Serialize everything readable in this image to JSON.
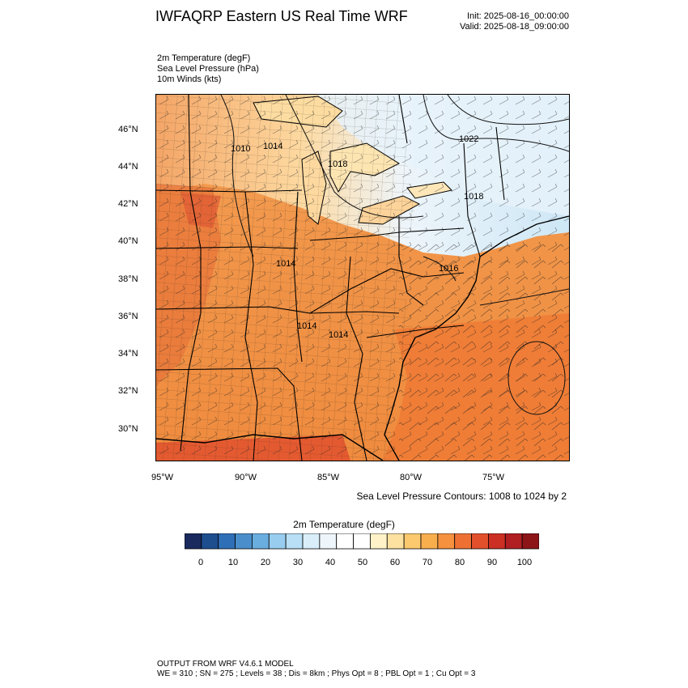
{
  "header": {
    "title": "IWFAQRP Eastern US Real Time WRF",
    "init": "Init: 2025-08-16_00:00:00",
    "valid": "Valid: 2025-08-18_09:00:00"
  },
  "fields": [
    "2m Temperature   (degF)",
    "Sea Level Pressure   (hPa)",
    "10m Winds   (kts)"
  ],
  "map": {
    "lat_labels": [
      "46°N",
      "44°N",
      "42°N",
      "40°N",
      "38°N",
      "36°N",
      "34°N",
      "32°N",
      "30°N"
    ],
    "lon_labels": [
      "95°W",
      "90°W",
      "85°W",
      "80°W",
      "75°W"
    ],
    "pressure_labels": [
      "1010",
      "1014",
      "1018",
      "1022",
      "1018",
      "1014",
      "1016",
      "1014",
      "1014"
    ],
    "slp_note": "Sea Level Pressure Contours: 1008 to 1024 by 2",
    "colors": {
      "hot": "#e34a33",
      "warm": "#f4a261",
      "mild": "#fde0a8",
      "cool": "#e8f3fa",
      "cold": "#cbe6f5"
    }
  },
  "colorbar": {
    "title": "2m Temperature  (degF)",
    "ticks": [
      "0",
      "10",
      "20",
      "30",
      "40",
      "50",
      "60",
      "70",
      "80",
      "90",
      "100"
    ],
    "colors": [
      "#1a2a5e",
      "#1f4e8f",
      "#2f6fb7",
      "#4a8fcc",
      "#6aaee0",
      "#98cdf0",
      "#b8dff5",
      "#d9eef9",
      "#eef6fb",
      "#ffffff",
      "#ffffff",
      "#fff2c8",
      "#fde1a0",
      "#fcc96e",
      "#f9ae4e",
      "#f5913f",
      "#ee7133",
      "#e2502b",
      "#cc3024",
      "#b11f22",
      "#8d1518"
    ]
  },
  "footer": {
    "line1": "OUTPUT FROM WRF V4.6.1 MODEL",
    "line2": "WE = 310 ; SN = 275 ; Levels = 38 ; Dis = 8km ; Phys Opt = 8 ; PBL Opt = 1 ; Cu Opt = 3"
  }
}
